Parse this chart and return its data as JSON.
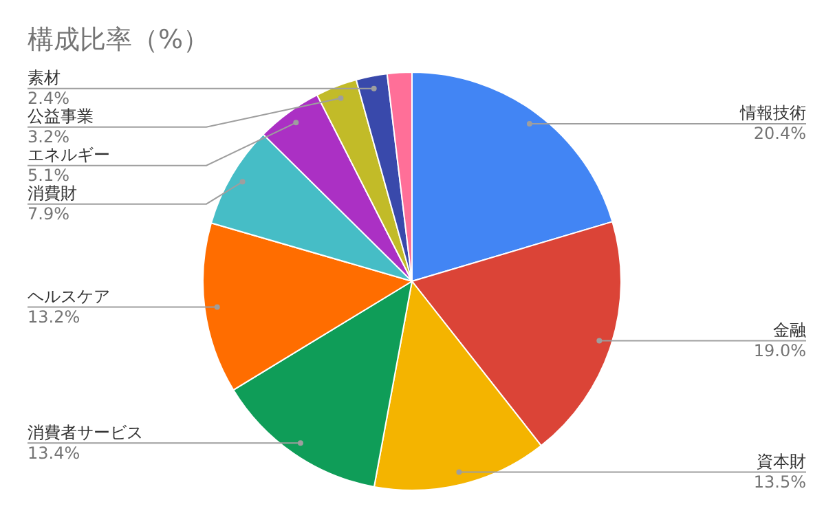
{
  "chart_data": {
    "type": "pie",
    "title": "構成比率（%）",
    "categories": [
      "情報技術",
      "金融",
      "資本財",
      "消費者サービス",
      "ヘルスケア",
      "消費財",
      "エネルギー",
      "公益事業",
      "素材",
      null
    ],
    "values": [
      20.4,
      19.0,
      13.5,
      13.4,
      13.2,
      7.9,
      5.1,
      3.2,
      2.4,
      1.9
    ],
    "value_labels": [
      "20.4%",
      "19.0%",
      "13.5%",
      "13.4%",
      "13.2%",
      "7.9%",
      "5.1%",
      "3.2%",
      "2.4%",
      null
    ],
    "colors": [
      "#4285f4",
      "#db4437",
      "#f4b400",
      "#0f9d58",
      "#ff6d00",
      "#46bdc6",
      "#ab30c4",
      "#c2bb28",
      "#3949ab",
      "#ff6f98"
    ],
    "legend": false
  }
}
